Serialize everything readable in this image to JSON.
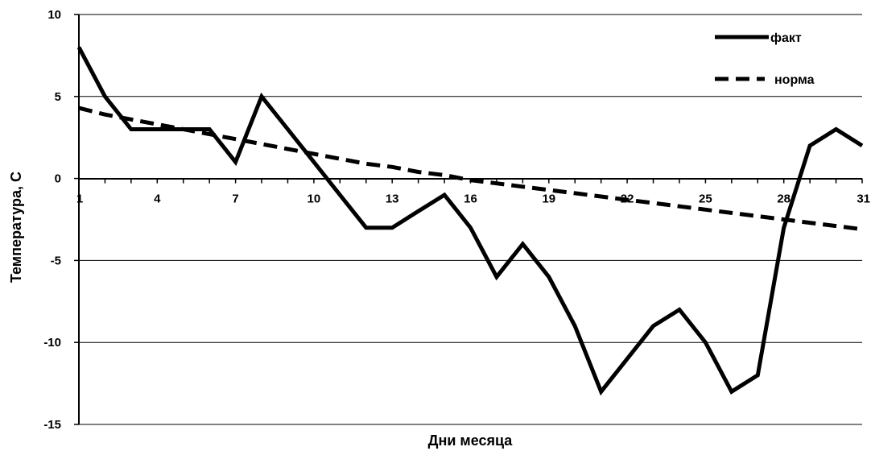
{
  "chart_data": {
    "type": "line",
    "xlabel": "Дни месяца",
    "ylabel": "Температура, С",
    "xlim": [
      1,
      31
    ],
    "ylim": [
      -15,
      10
    ],
    "x_ticks": [
      "1",
      "4",
      "7",
      "10",
      "13",
      "16",
      "19",
      "22",
      "25",
      "28",
      "31"
    ],
    "y_ticks": [
      "10",
      "5",
      "0",
      "-5",
      "-10",
      "-15"
    ],
    "grid": "horizontal",
    "legend": "top-right",
    "x": [
      1,
      2,
      3,
      4,
      5,
      6,
      7,
      8,
      9,
      10,
      11,
      12,
      13,
      14,
      15,
      16,
      17,
      18,
      19,
      20,
      21,
      22,
      23,
      24,
      25,
      26,
      27,
      28,
      29,
      30,
      31
    ],
    "series": [
      {
        "name": "факт",
        "style": "solid",
        "color": "#000000",
        "values": [
          8,
          5,
          3,
          3,
          3,
          3,
          1,
          5,
          3,
          1,
          -1,
          -3,
          -3,
          -2,
          -1,
          -3,
          -6,
          -4,
          -6,
          -9,
          -13,
          -11,
          -9,
          -8,
          -10,
          -13,
          -12,
          -3,
          2,
          3,
          2
        ]
      },
      {
        "name": "норма",
        "style": "dashed",
        "color": "#000000",
        "values": [
          4.3,
          3.9,
          3.6,
          3.3,
          3.0,
          2.7,
          2.4,
          2.1,
          1.8,
          1.5,
          1.2,
          0.9,
          0.7,
          0.4,
          0.2,
          -0.1,
          -0.3,
          -0.5,
          -0.7,
          -0.9,
          -1.1,
          -1.3,
          -1.5,
          -1.7,
          -1.9,
          -2.1,
          -2.3,
          -2.5,
          -2.7,
          -2.9,
          -3.1
        ]
      }
    ]
  }
}
